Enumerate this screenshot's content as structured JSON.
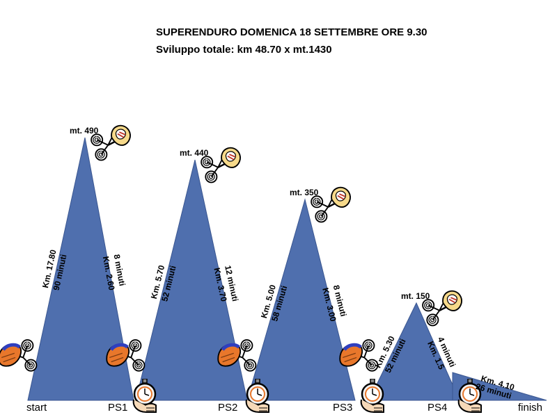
{
  "title_line1": "SUPERENDURO DOMENICA 18 SETTEMBRE ORE 9.30",
  "title_line2": "Sviluppo totale: km 48.70 x mt.1430",
  "colors": {
    "mountain": "#4F6FAE",
    "mountain_stroke": "#3A5690",
    "helmet_orange": "#E8772B",
    "helmet_blue": "#2F3FBF",
    "helmet_yellow": "#F6D98A"
  },
  "stations": [
    "start",
    "PS1",
    "PS2",
    "PS3",
    "PS4",
    "finish"
  ],
  "peaks": [
    {
      "altitude": "mt. 490",
      "up_km": "Km. 17.80",
      "up_time": "90 minuti",
      "down_km": "Km. 2.60",
      "down_time": "8 minuti"
    },
    {
      "altitude": "mt. 440",
      "up_km": "Km. 5.70",
      "up_time": "52 minuti",
      "down_km": "Km. 3.70",
      "down_time": "12 minuti"
    },
    {
      "altitude": "mt. 350",
      "up_km": "Km. 5.00",
      "up_time": "58 minuti",
      "down_km": "Km. 3.00",
      "down_time": "8 minuti"
    },
    {
      "altitude": "mt. 150",
      "up_km": "Km. 5.30",
      "up_time": "52 minuti",
      "down_km": "Km. 1.5",
      "down_time": "4 minuti"
    }
  ],
  "final_leg": {
    "km": "Km. 4.10",
    "time": "26 minuti"
  },
  "icons": {
    "climber": "cyclist-orange-helmet-icon",
    "descender": "cyclist-fullface-helmet-icon",
    "stopwatch": "stopwatch-in-hand-icon"
  }
}
